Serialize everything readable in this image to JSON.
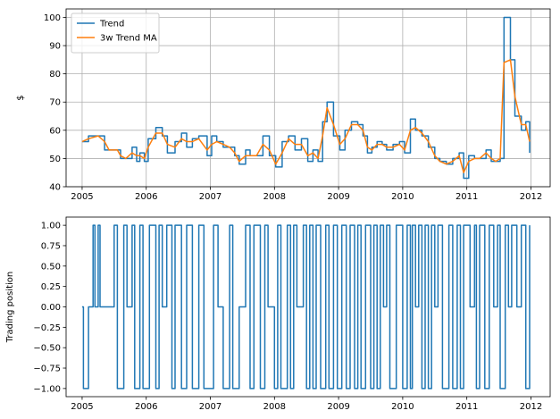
{
  "chart_data": [
    {
      "type": "line",
      "xlabel": "",
      "ylabel": "$",
      "xlim": [
        2004.75,
        2012.3
      ],
      "ylim": [
        40,
        103
      ],
      "xticks": [
        2005,
        2006,
        2007,
        2008,
        2009,
        2010,
        2011,
        2012
      ],
      "xtick_labels": [
        "2005",
        "2006",
        "2007",
        "2008",
        "2009",
        "2010",
        "2011",
        "2012"
      ],
      "yticks": [
        40,
        50,
        60,
        70,
        80,
        90,
        100
      ],
      "ytick_labels": [
        "40",
        "50",
        "60",
        "70",
        "80",
        "90",
        "100"
      ],
      "grid": true,
      "legend": "top-left",
      "series": [
        {
          "name": "Trend",
          "color": "#1f77b4",
          "step": true,
          "x": [
            2005.0,
            2005.1,
            2005.25,
            2005.35,
            2005.42,
            2005.55,
            2005.6,
            2005.68,
            2005.78,
            2005.85,
            2005.9,
            2005.97,
            2006.03,
            2006.15,
            2006.25,
            2006.33,
            2006.45,
            2006.55,
            2006.63,
            2006.72,
            2006.82,
            2006.95,
            2007.02,
            2007.1,
            2007.2,
            2007.3,
            2007.38,
            2007.45,
            2007.55,
            2007.62,
            2007.72,
            2007.82,
            2007.92,
            2008.02,
            2008.12,
            2008.22,
            2008.32,
            2008.42,
            2008.52,
            2008.6,
            2008.68,
            2008.75,
            2008.82,
            2008.92,
            2009.02,
            2009.1,
            2009.2,
            2009.3,
            2009.38,
            2009.45,
            2009.52,
            2009.6,
            2009.68,
            2009.75,
            2009.85,
            2009.95,
            2010.03,
            2010.12,
            2010.2,
            2010.3,
            2010.4,
            2010.5,
            2010.58,
            2010.68,
            2010.78,
            2010.88,
            2010.95,
            2011.03,
            2011.12,
            2011.2,
            2011.3,
            2011.38,
            2011.45,
            2011.52,
            2011.58,
            2011.68,
            2011.75,
            2011.85,
            2011.92,
            2011.98
          ],
          "y": [
            56,
            58,
            58,
            53,
            53,
            53,
            50,
            50,
            54,
            49,
            52,
            49,
            57,
            61,
            58,
            52,
            56,
            59,
            54,
            57,
            58,
            51,
            58,
            56,
            54,
            54,
            51,
            48,
            53,
            51,
            51,
            58,
            51,
            47,
            56,
            58,
            53,
            57,
            49,
            53,
            49,
            63,
            70,
            58,
            53,
            60,
            63,
            62,
            58,
            52,
            54,
            56,
            55,
            53,
            55,
            56,
            52,
            64,
            60,
            58,
            54,
            50,
            49,
            48,
            50,
            52,
            43,
            51,
            50,
            50,
            53,
            49,
            49,
            50,
            100,
            85,
            65,
            60,
            63,
            52
          ]
        },
        {
          "name": "3w Trend MA",
          "color": "#ff7f0e",
          "step": false,
          "x": [
            2005.0,
            2005.1,
            2005.25,
            2005.35,
            2005.42,
            2005.55,
            2005.6,
            2005.68,
            2005.78,
            2005.85,
            2005.9,
            2005.97,
            2006.03,
            2006.15,
            2006.25,
            2006.33,
            2006.45,
            2006.55,
            2006.63,
            2006.72,
            2006.82,
            2006.95,
            2007.02,
            2007.1,
            2007.2,
            2007.3,
            2007.38,
            2007.45,
            2007.55,
            2007.62,
            2007.72,
            2007.82,
            2007.92,
            2008.02,
            2008.12,
            2008.22,
            2008.32,
            2008.42,
            2008.52,
            2008.6,
            2008.68,
            2008.75,
            2008.82,
            2008.92,
            2009.02,
            2009.1,
            2009.2,
            2009.3,
            2009.38,
            2009.45,
            2009.52,
            2009.6,
            2009.68,
            2009.75,
            2009.85,
            2009.95,
            2010.03,
            2010.12,
            2010.2,
            2010.3,
            2010.4,
            2010.5,
            2010.58,
            2010.68,
            2010.78,
            2010.88,
            2010.95,
            2011.03,
            2011.12,
            2011.2,
            2011.3,
            2011.38,
            2011.45,
            2011.52,
            2011.58,
            2011.68,
            2011.75,
            2011.85,
            2011.92,
            2011.98
          ],
          "y": [
            56,
            57,
            58,
            56,
            53,
            53,
            51,
            50,
            52,
            51,
            51,
            50,
            54,
            59,
            59,
            55,
            54,
            57,
            56,
            56,
            57,
            53,
            55,
            56,
            55,
            54,
            52,
            49,
            51,
            51,
            51,
            55,
            53,
            48,
            52,
            57,
            55,
            55,
            51,
            52,
            50,
            58,
            68,
            62,
            55,
            57,
            62,
            62,
            60,
            54,
            53,
            55,
            55,
            54,
            54,
            55,
            53,
            60,
            61,
            59,
            56,
            51,
            49,
            48,
            49,
            51,
            45,
            49,
            50,
            50,
            52,
            50,
            49,
            50,
            84,
            85,
            72,
            62,
            62,
            56
          ]
        }
      ]
    },
    {
      "type": "line",
      "xlabel": "",
      "ylabel": "Trading position",
      "xlim": [
        2004.75,
        2012.3
      ],
      "ylim": [
        -1.1,
        1.1
      ],
      "xticks": [
        2005,
        2006,
        2007,
        2008,
        2009,
        2010,
        2011,
        2012
      ],
      "xtick_labels": [
        "2005",
        "2006",
        "2007",
        "2008",
        "2009",
        "2010",
        "2011",
        "2012"
      ],
      "yticks": [
        1.0,
        0.75,
        0.5,
        0.25,
        0.0,
        -0.25,
        -0.5,
        -0.75,
        -1.0
      ],
      "ytick_labels": [
        "1.00",
        "0.75",
        "0.50",
        "0.25",
        "0.00",
        "−0.25",
        "−0.50",
        "−0.75",
        "−1.00"
      ],
      "grid": false,
      "series": [
        {
          "color": "#1f77b4",
          "step": true,
          "x": [
            2005.0,
            2005.02,
            2005.1,
            2005.17,
            2005.2,
            2005.25,
            2005.28,
            2005.32,
            2005.4,
            2005.5,
            2005.55,
            2005.65,
            2005.7,
            2005.78,
            2005.82,
            2005.9,
            2005.95,
            2006.05,
            2006.15,
            2006.2,
            2006.25,
            2006.32,
            2006.4,
            2006.45,
            2006.55,
            2006.63,
            2006.72,
            2006.82,
            2006.9,
            2007.05,
            2007.12,
            2007.2,
            2007.3,
            2007.35,
            2007.45,
            2007.55,
            2007.62,
            2007.68,
            2007.78,
            2007.85,
            2007.9,
            2008.0,
            2008.05,
            2008.1,
            2008.2,
            2008.25,
            2008.3,
            2008.35,
            2008.45,
            2008.5,
            2008.55,
            2008.6,
            2008.65,
            2008.72,
            2008.8,
            2008.85,
            2008.92,
            2008.98,
            2009.05,
            2009.12,
            2009.18,
            2009.25,
            2009.3,
            2009.35,
            2009.42,
            2009.5,
            2009.55,
            2009.6,
            2009.65,
            2009.7,
            2009.75,
            2009.8,
            2009.9,
            2010.0,
            2010.07,
            2010.12,
            2010.15,
            2010.2,
            2010.25,
            2010.3,
            2010.35,
            2010.4,
            2010.45,
            2010.5,
            2010.55,
            2010.62,
            2010.72,
            2010.78,
            2010.85,
            2010.9,
            2010.95,
            2011.05,
            2011.12,
            2011.15,
            2011.2,
            2011.28,
            2011.35,
            2011.42,
            2011.48,
            2011.52,
            2011.6,
            2011.65,
            2011.7,
            2011.78,
            2011.85,
            2011.92,
            2011.98
          ],
          "y": [
            0,
            -1,
            0,
            1,
            0,
            1,
            0,
            0,
            0,
            1,
            -1,
            1,
            0,
            1,
            -1,
            1,
            -1,
            1,
            -1,
            1,
            0,
            1,
            -1,
            1,
            -1,
            1,
            -1,
            1,
            -1,
            1,
            0,
            -1,
            1,
            -1,
            0,
            1,
            -1,
            1,
            -1,
            1,
            0,
            -1,
            1,
            -1,
            1,
            -1,
            1,
            0,
            1,
            -1,
            1,
            -1,
            1,
            -1,
            1,
            -1,
            1,
            -1,
            1,
            -1,
            1,
            -1,
            1,
            -1,
            1,
            -1,
            1,
            -1,
            1,
            0,
            1,
            -1,
            1,
            -1,
            1,
            -1,
            1,
            0,
            1,
            -1,
            1,
            -1,
            1,
            0,
            1,
            -1,
            1,
            -1,
            1,
            -1,
            1,
            0,
            1,
            -1,
            1,
            -1,
            1,
            0,
            1,
            -1,
            1,
            0,
            1,
            0,
            1,
            -1,
            1
          ]
        }
      ]
    }
  ]
}
